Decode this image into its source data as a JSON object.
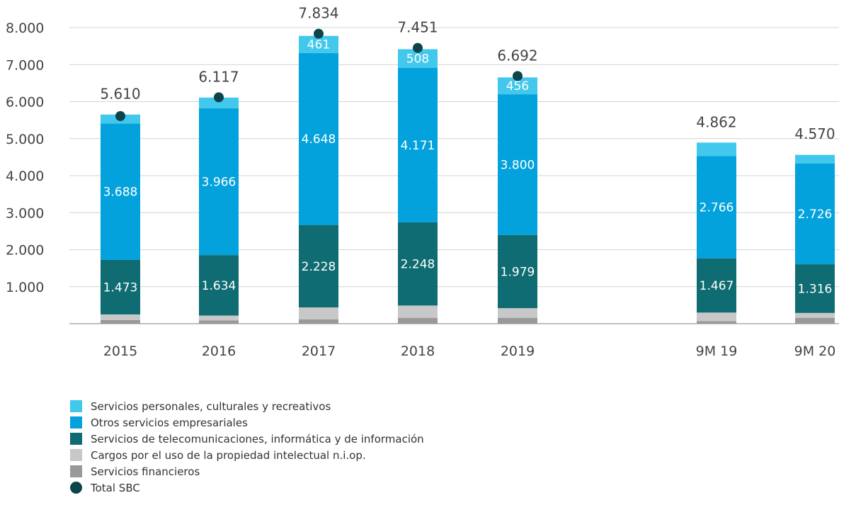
{
  "chart_data": {
    "type": "bar",
    "stacked": true,
    "categories": [
      "2015",
      "2016",
      "2017",
      "2018",
      "2019",
      "9M 19",
      "9M 20"
    ],
    "ylim": [
      0,
      8000
    ],
    "yticks": [
      "1.000",
      "2.000",
      "3.000",
      "4.000",
      "5.000",
      "6.000",
      "7.000",
      "8.000"
    ],
    "ytick_values": [
      1000,
      2000,
      3000,
      4000,
      5000,
      6000,
      7000,
      8000
    ],
    "grid": true,
    "series": [
      {
        "name": "Servicios financieros",
        "color": "#999999",
        "values": [
          100,
          90,
          120,
          160,
          160,
          70,
          160
        ],
        "labels": [
          "",
          "",
          "",
          "",
          "",
          "",
          ""
        ]
      },
      {
        "name": "Cargos por el uso de la propiedad intelectual n.i.op.",
        "color": "#c8c8c8",
        "values": [
          150,
          130,
          320,
          330,
          260,
          230,
          130
        ],
        "labels": [
          "",
          "",
          "",
          "",
          "",
          "",
          ""
        ]
      },
      {
        "name": "Servicios de telecomunicaciones, informática y de información",
        "color": "#0f6c72",
        "values": [
          1473,
          1634,
          2228,
          2248,
          1979,
          1467,
          1316
        ],
        "labels": [
          "1.473",
          "1.634",
          "2.228",
          "2.248",
          "1.979",
          "1.467",
          "1.316"
        ]
      },
      {
        "name": "Otros servicios empresariales",
        "color": "#04a2dc",
        "values": [
          3688,
          3966,
          4648,
          4171,
          3800,
          2766,
          2726
        ],
        "labels": [
          "3.688",
          "3.966",
          "4.648",
          "4.171",
          "3.800",
          "2.766",
          "2.726"
        ]
      },
      {
        "name": "Servicios personales, culturales y recreativos",
        "color": "#42c8ec",
        "values": [
          240,
          290,
          461,
          508,
          456,
          360,
          230
        ],
        "labels": [
          "",
          "",
          "461",
          "508",
          "456",
          "",
          ""
        ]
      }
    ],
    "totals": {
      "name": "Total SBC",
      "color": "#0d434a",
      "values": [
        5610,
        6117,
        7834,
        7451,
        6692,
        4862,
        4570
      ],
      "labels": [
        "5.610",
        "6.117",
        "7.834",
        "7.451",
        "6.692",
        "4.862",
        "4.570"
      ],
      "show_marker": [
        true,
        true,
        true,
        true,
        true,
        false,
        false
      ]
    },
    "legend": {
      "placement": "bottom-left",
      "items": [
        {
          "label": "Servicios personales, culturales y recreativos",
          "color": "#42c8ec",
          "shape": "square"
        },
        {
          "label": "Otros servicios empresariales",
          "color": "#04a2dc",
          "shape": "square"
        },
        {
          "label": "Servicios de telecomunicaciones, informática y de información",
          "color": "#0f6c72",
          "shape": "square"
        },
        {
          "label": "Cargos por el uso de la propiedad intelectual n.i.op.",
          "color": "#c8c8c8",
          "shape": "square"
        },
        {
          "label": "Servicios financieros",
          "color": "#999999",
          "shape": "square"
        },
        {
          "label": "Total SBC",
          "color": "#0d434a",
          "shape": "circle"
        }
      ]
    }
  }
}
